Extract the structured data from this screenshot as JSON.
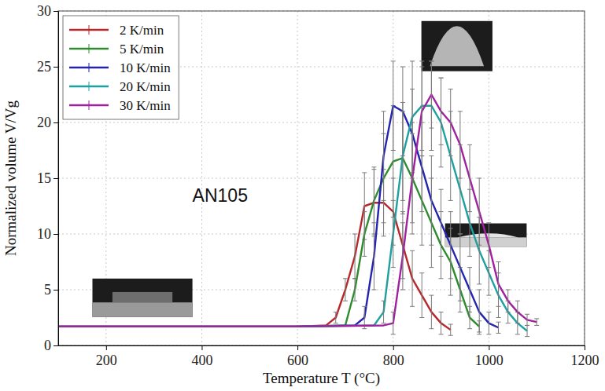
{
  "chart_data": {
    "type": "line",
    "annotation": "AN105",
    "x_label": "Temperature T (°C)",
    "y_label": "Normalized volume V/Vg",
    "xlim": [
      100,
      1200
    ],
    "ylim": [
      0,
      30
    ],
    "xticks": [
      200,
      400,
      600,
      800,
      1000,
      1200
    ],
    "yticks": [
      0,
      5,
      10,
      15,
      20,
      25,
      30
    ],
    "grid": true,
    "legend": "upper left",
    "series": [
      {
        "name": "2 K/min",
        "color": "#b8282b",
        "x": [
          100,
          200,
          300,
          400,
          500,
          600,
          660,
          680,
          700,
          720,
          740,
          760,
          780,
          800,
          820,
          840,
          860,
          880,
          900,
          920
        ],
        "values": [
          1.7,
          1.7,
          1.7,
          1.7,
          1.7,
          1.7,
          1.8,
          2.5,
          5,
          8,
          12.5,
          12.8,
          12.8,
          12,
          9,
          6,
          4.5,
          3,
          2,
          1.4
        ],
        "errors": [
          null,
          null,
          null,
          null,
          null,
          null,
          null,
          0.5,
          1,
          2,
          3,
          3,
          3,
          3,
          3,
          2.5,
          2,
          1.5,
          1,
          0.5
        ]
      },
      {
        "name": "5 K/min",
        "color": "#2e8b2e",
        "x": [
          100,
          200,
          300,
          400,
          500,
          600,
          700,
          720,
          740,
          760,
          780,
          800,
          820,
          840,
          860,
          880,
          900,
          920,
          940,
          960,
          980
        ],
        "values": [
          1.7,
          1.7,
          1.7,
          1.7,
          1.7,
          1.7,
          1.8,
          5,
          10,
          13,
          15,
          16.5,
          16.8,
          15,
          13,
          11,
          9,
          7.5,
          5,
          2.5,
          1.7
        ],
        "errors": [
          null,
          null,
          null,
          null,
          null,
          null,
          null,
          1,
          2,
          3,
          4,
          5,
          5,
          5,
          4,
          4,
          3,
          3,
          2,
          1,
          0.5
        ]
      },
      {
        "name": "10 K/min",
        "color": "#2424b0",
        "x": [
          100,
          200,
          300,
          400,
          500,
          600,
          720,
          740,
          760,
          780,
          800,
          820,
          840,
          860,
          880,
          900,
          920,
          940,
          960,
          980,
          1000,
          1020
        ],
        "values": [
          1.7,
          1.7,
          1.7,
          1.7,
          1.7,
          1.7,
          1.8,
          2.5,
          8,
          17,
          21.5,
          21,
          19,
          16,
          13,
          11,
          9,
          7,
          5,
          3,
          2,
          1.6
        ],
        "errors": [
          null,
          null,
          null,
          null,
          null,
          null,
          null,
          1,
          3,
          4,
          4,
          4,
          4,
          4,
          4,
          3,
          3,
          3,
          2,
          2,
          1,
          0.5
        ]
      },
      {
        "name": "20 K/min",
        "color": "#1fa0a0",
        "x": [
          100,
          200,
          300,
          400,
          500,
          600,
          760,
          780,
          800,
          820,
          840,
          860,
          880,
          900,
          920,
          940,
          960,
          980,
          1000,
          1020,
          1040,
          1060,
          1080
        ],
        "values": [
          1.7,
          1.7,
          1.7,
          1.7,
          1.7,
          1.7,
          1.8,
          3,
          10,
          17,
          20.5,
          21.5,
          21.5,
          20,
          17,
          14,
          11,
          8.5,
          6.5,
          4.5,
          3,
          2,
          1.3
        ],
        "errors": [
          null,
          null,
          null,
          null,
          null,
          null,
          null,
          1,
          3,
          4,
          5,
          4,
          4,
          4,
          4,
          4,
          3,
          3,
          2,
          2,
          1,
          1,
          0.5
        ]
      },
      {
        "name": "30 K/min",
        "color": "#a0209e",
        "x": [
          100,
          200,
          300,
          400,
          500,
          600,
          780,
          800,
          820,
          840,
          860,
          880,
          900,
          920,
          940,
          960,
          980,
          1000,
          1020,
          1040,
          1060,
          1080,
          1100
        ],
        "values": [
          1.7,
          1.7,
          1.7,
          1.7,
          1.7,
          1.7,
          1.8,
          2,
          8,
          15,
          21,
          22.5,
          21,
          20,
          18,
          15,
          12,
          9,
          5.5,
          4,
          3,
          2.3,
          2.1
        ],
        "errors": [
          null,
          null,
          null,
          null,
          null,
          null,
          null,
          1,
          3,
          4,
          4,
          3,
          3,
          3,
          3,
          3,
          3,
          2,
          2,
          1,
          1,
          0.5,
          0.3
        ]
      }
    ]
  }
}
